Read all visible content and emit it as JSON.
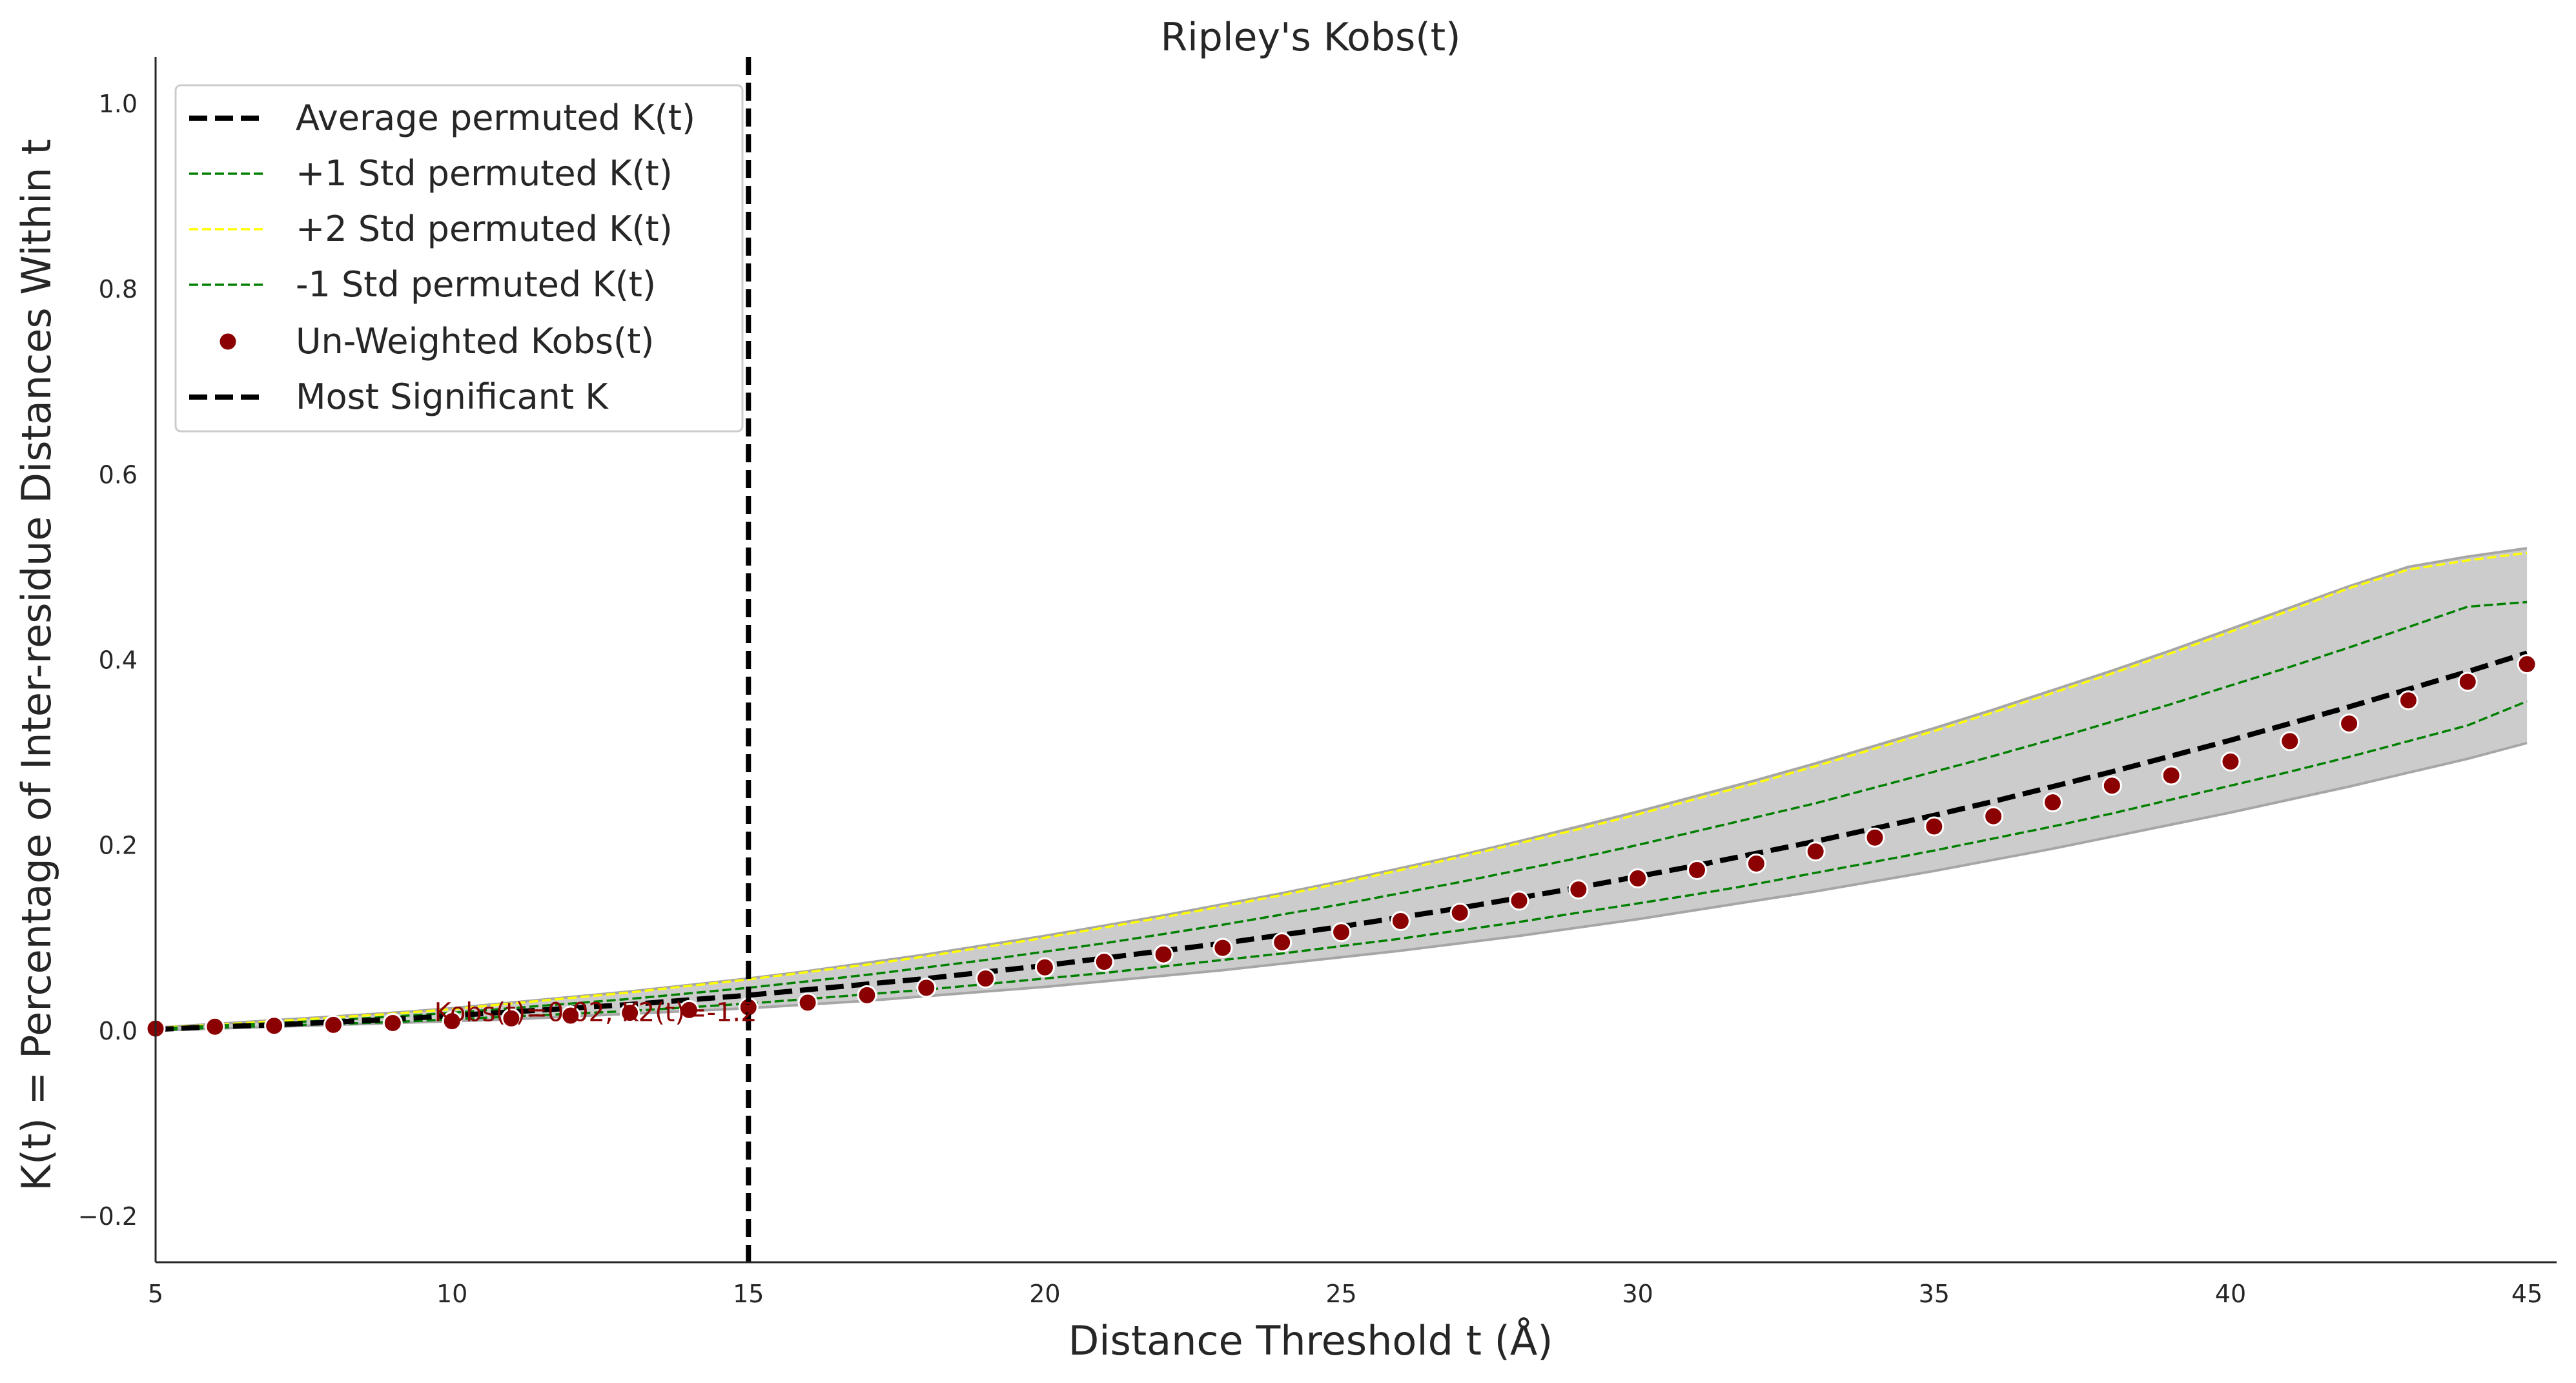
{
  "chart_data": {
    "type": "line",
    "title": "Ripley's Kobs(t)",
    "xlabel": "Distance Threshold t (Å)",
    "ylabel": "K(t) = Percentage of Inter-residue Distances Within t",
    "xlim": [
      5,
      45.5
    ],
    "ylim": [
      -0.25,
      1.05
    ],
    "xticks": [
      5,
      10,
      15,
      20,
      25,
      30,
      35,
      40,
      45
    ],
    "yticks": [
      -0.2,
      0.0,
      0.2,
      0.4,
      0.6,
      0.8,
      1.0
    ],
    "xtick_labels": [
      "5",
      "10",
      "15",
      "20",
      "25",
      "30",
      "35",
      "40",
      "45"
    ],
    "ytick_labels": [
      "−0.2",
      "0.0",
      "0.2",
      "0.4",
      "0.6",
      "0.8",
      "1.0"
    ],
    "grid": false,
    "legend_position": "top-left",
    "x": [
      5,
      6,
      7,
      8,
      9,
      10,
      11,
      12,
      13,
      14,
      15,
      16,
      17,
      18,
      19,
      20,
      21,
      22,
      23,
      24,
      25,
      26,
      27,
      28,
      29,
      30,
      31,
      32,
      33,
      34,
      35,
      36,
      37,
      38,
      39,
      40,
      41,
      42,
      43,
      44,
      45
    ],
    "series": [
      {
        "name": "Average permuted K(t)",
        "style": "dashed",
        "color": "#000000",
        "values": [
          0.001,
          0.004,
          0.006,
          0.009,
          0.012,
          0.016,
          0.02,
          0.024,
          0.028,
          0.033,
          0.038,
          0.044,
          0.05,
          0.056,
          0.063,
          0.07,
          0.078,
          0.086,
          0.094,
          0.103,
          0.112,
          0.122,
          0.132,
          0.143,
          0.154,
          0.166,
          0.178,
          0.191,
          0.204,
          0.218,
          0.232,
          0.247,
          0.263,
          0.279,
          0.296,
          0.313,
          0.331,
          0.349,
          0.368,
          0.387,
          0.407
        ]
      },
      {
        "name": "+1 Std permuted K(t)",
        "style": "dashed",
        "color": "#008000",
        "values": [
          0.002,
          0.005,
          0.008,
          0.011,
          0.015,
          0.019,
          0.024,
          0.029,
          0.034,
          0.04,
          0.046,
          0.053,
          0.06,
          0.068,
          0.076,
          0.085,
          0.094,
          0.104,
          0.114,
          0.125,
          0.136,
          0.148,
          0.16,
          0.173,
          0.186,
          0.2,
          0.215,
          0.23,
          0.245,
          0.262,
          0.279,
          0.296,
          0.314,
          0.333,
          0.352,
          0.372,
          0.392,
          0.413,
          0.435,
          0.457,
          0.462
        ]
      },
      {
        "name": "+2 Std permuted K(t)",
        "style": "dashed",
        "color": "#ffff00",
        "values": [
          0.003,
          0.006,
          0.01,
          0.014,
          0.018,
          0.023,
          0.029,
          0.035,
          0.041,
          0.048,
          0.055,
          0.063,
          0.071,
          0.08,
          0.09,
          0.1,
          0.111,
          0.122,
          0.134,
          0.146,
          0.159,
          0.173,
          0.187,
          0.202,
          0.217,
          0.233,
          0.25,
          0.267,
          0.285,
          0.304,
          0.323,
          0.343,
          0.364,
          0.385,
          0.407,
          0.43,
          0.453,
          0.477,
          0.497,
          0.507,
          0.515
        ]
      },
      {
        "name": "-1 Std permuted K(t)",
        "style": "dashed",
        "color": "#008000",
        "values": [
          0.0,
          0.003,
          0.005,
          0.007,
          0.009,
          0.012,
          0.015,
          0.018,
          0.021,
          0.025,
          0.029,
          0.034,
          0.039,
          0.044,
          0.05,
          0.056,
          0.062,
          0.069,
          0.076,
          0.083,
          0.091,
          0.099,
          0.108,
          0.117,
          0.127,
          0.137,
          0.147,
          0.158,
          0.17,
          0.182,
          0.194,
          0.207,
          0.22,
          0.234,
          0.249,
          0.264,
          0.279,
          0.295,
          0.312,
          0.329,
          0.355
        ]
      },
      {
        "name": "Un-Weighted Kobs(t)",
        "style": "scatter",
        "color": "#8b0000",
        "values": [
          0.002,
          0.004,
          0.005,
          0.006,
          0.008,
          0.01,
          0.013,
          0.016,
          0.019,
          0.022,
          0.025,
          0.03,
          0.038,
          0.046,
          0.056,
          0.068,
          0.074,
          0.082,
          0.089,
          0.095,
          0.106,
          0.118,
          0.127,
          0.14,
          0.152,
          0.164,
          0.173,
          0.18,
          0.193,
          0.208,
          0.22,
          0.231,
          0.246,
          0.264,
          0.275,
          0.29,
          0.312,
          0.331,
          0.356,
          0.376,
          0.395
        ]
      }
    ],
    "band": {
      "color": "#cccccc",
      "lower": [
        0.0,
        0.002,
        0.004,
        0.006,
        0.008,
        0.01,
        0.012,
        0.015,
        0.018,
        0.021,
        0.024,
        0.028,
        0.032,
        0.037,
        0.042,
        0.047,
        0.053,
        0.059,
        0.065,
        0.072,
        0.079,
        0.086,
        0.094,
        0.102,
        0.111,
        0.12,
        0.13,
        0.14,
        0.15,
        0.161,
        0.172,
        0.184,
        0.196,
        0.209,
        0.222,
        0.235,
        0.249,
        0.263,
        0.278,
        0.293,
        0.31
      ],
      "upper": [
        0.003,
        0.007,
        0.011,
        0.015,
        0.019,
        0.024,
        0.03,
        0.036,
        0.042,
        0.049,
        0.056,
        0.064,
        0.073,
        0.082,
        0.092,
        0.102,
        0.113,
        0.124,
        0.136,
        0.148,
        0.161,
        0.175,
        0.189,
        0.204,
        0.22,
        0.236,
        0.253,
        0.27,
        0.288,
        0.307,
        0.326,
        0.346,
        0.367,
        0.388,
        0.41,
        0.433,
        0.456,
        0.479,
        0.5,
        0.511,
        0.52
      ]
    },
    "vline": {
      "name": "Most Significant K",
      "x": 15,
      "style": "dashed",
      "color": "#000000"
    },
    "annotation": {
      "text": "Kobs(t)=0.02, K2(t)=-1.2",
      "x": 9.7,
      "y": 0.01
    }
  }
}
